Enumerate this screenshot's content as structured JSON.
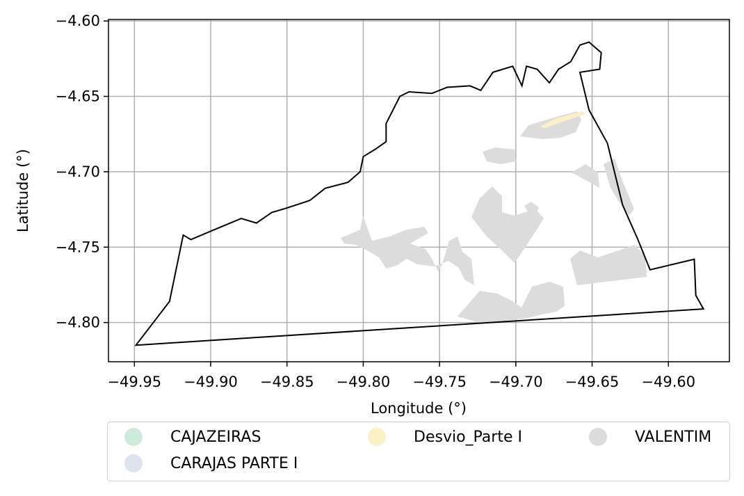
{
  "chart_data": {
    "type": "map",
    "xlabel": "Longitude (°)",
    "ylabel": "Latitude (°)",
    "xlim": [
      -49.967,
      -49.56
    ],
    "ylim": [
      -4.826,
      -4.599
    ],
    "grid": true,
    "xticks": [
      -49.95,
      -49.9,
      -49.85,
      -49.8,
      -49.75,
      -49.7,
      -49.65,
      -49.6
    ],
    "xtick_labels": [
      "−49.95",
      "−49.90",
      "−49.85",
      "−49.80",
      "−49.75",
      "−49.70",
      "−49.65",
      "−49.60"
    ],
    "yticks": [
      -4.6,
      -4.65,
      -4.7,
      -4.75,
      -4.8
    ],
    "ytick_labels": [
      "−4.60",
      "−4.65",
      "−4.70",
      "−4.75",
      "−4.80"
    ],
    "legend_position": "below",
    "legend": [
      {
        "label": "CAJAZEIRAS",
        "color": "#cdeadb"
      },
      {
        "label": "CARAJAS PARTE I",
        "color": "#dde3ef"
      },
      {
        "label": "Desvio_Parte I",
        "color": "#fdf0c6"
      },
      {
        "label": "VALENTIM",
        "color": "#dcdcdc"
      }
    ],
    "boundary_outline": [
      [
        -49.949,
        -4.815
      ],
      [
        -49.927,
        -4.786
      ],
      [
        -49.918,
        -4.742
      ],
      [
        -49.913,
        -4.745
      ],
      [
        -49.899,
        -4.739
      ],
      [
        -49.88,
        -4.731
      ],
      [
        -49.87,
        -4.734
      ],
      [
        -49.86,
        -4.727
      ],
      [
        -49.85,
        -4.724
      ],
      [
        -49.835,
        -4.719
      ],
      [
        -49.825,
        -4.711
      ],
      [
        -49.81,
        -4.707
      ],
      [
        -49.802,
        -4.7
      ],
      [
        -49.8,
        -4.69
      ],
      [
        -49.792,
        -4.685
      ],
      [
        -49.785,
        -4.68
      ],
      [
        -49.785,
        -4.668
      ],
      [
        -49.781,
        -4.66
      ],
      [
        -49.776,
        -4.65
      ],
      [
        -49.77,
        -4.647
      ],
      [
        -49.755,
        -4.648
      ],
      [
        -49.745,
        -4.644
      ],
      [
        -49.73,
        -4.643
      ],
      [
        -49.723,
        -4.646
      ],
      [
        -49.715,
        -4.634
      ],
      [
        -49.702,
        -4.63
      ],
      [
        -49.696,
        -4.643
      ],
      [
        -49.693,
        -4.63
      ],
      [
        -49.686,
        -4.632
      ],
      [
        -49.678,
        -4.641
      ],
      [
        -49.672,
        -4.632
      ],
      [
        -49.664,
        -4.627
      ],
      [
        -49.658,
        -4.616
      ],
      [
        -49.652,
        -4.614
      ],
      [
        -49.644,
        -4.621
      ],
      [
        -49.645,
        -4.632
      ],
      [
        -49.658,
        -4.634
      ],
      [
        -49.652,
        -4.659
      ],
      [
        -49.64,
        -4.681
      ],
      [
        -49.63,
        -4.722
      ],
      [
        -49.62,
        -4.745
      ],
      [
        -49.612,
        -4.765
      ],
      [
        -49.583,
        -4.758
      ],
      [
        -49.582,
        -4.782
      ],
      [
        -49.577,
        -4.791
      ],
      [
        -49.949,
        -4.815
      ]
    ],
    "regions": [
      {
        "name": "VALENTIM",
        "color": "#dcdcdc"
      },
      {
        "name": "Desvio_Parte I",
        "color": "#fdf0c6"
      }
    ]
  }
}
